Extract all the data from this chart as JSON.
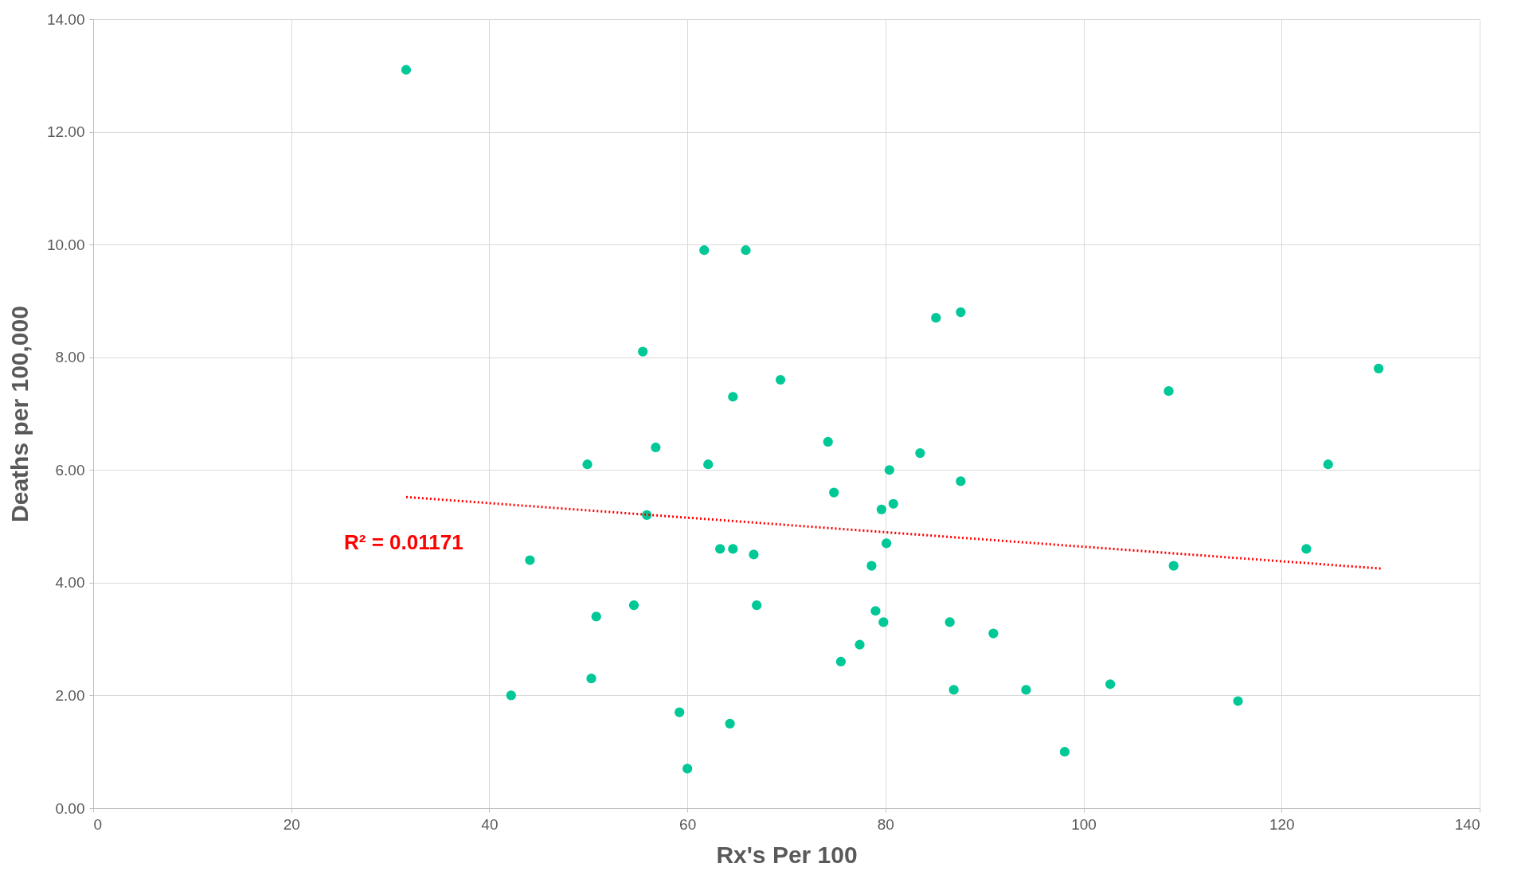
{
  "chart_data": {
    "type": "scatter",
    "xlabel": "Rx's Per 100",
    "ylabel": "Deaths per 100,000",
    "xlim": [
      0,
      140
    ],
    "xticks": [
      0,
      20,
      40,
      60,
      80,
      100,
      120,
      140
    ],
    "ylim": [
      0,
      14
    ],
    "yticks": [
      {
        "value": 0,
        "label": "0.00"
      },
      {
        "value": 2,
        "label": "2.00"
      },
      {
        "value": 4,
        "label": "4.00"
      },
      {
        "value": 6,
        "label": "6.00"
      },
      {
        "value": 8,
        "label": "8.00"
      },
      {
        "value": 10,
        "label": "10.00"
      },
      {
        "value": 12,
        "label": "12.00"
      },
      {
        "value": 14,
        "label": "14.00"
      }
    ],
    "grid": true,
    "marker": "circle",
    "annotations": [
      "R² = 0.01171"
    ],
    "series": [
      {
        "type": "scatter",
        "color": "#00c896",
        "x": [
          31.6,
          61.7,
          65.9,
          85.1,
          87.6,
          55.5,
          69.4,
          64.6,
          108.6,
          129.8,
          74.2,
          56.8,
          49.9,
          62.1,
          83.5,
          80.4,
          87.6,
          74.8,
          124.7,
          80.8,
          79.6,
          55.9,
          80.1,
          63.3,
          64.6,
          66.7,
          78.6,
          122.5,
          109.1,
          44.1,
          54.6,
          67.0,
          50.8,
          79.0,
          79.8,
          86.5,
          90.9,
          77.4,
          75.5,
          50.3,
          42.2,
          86.9,
          94.2,
          102.7,
          115.6,
          59.2,
          64.3,
          60.0,
          98.1
        ],
        "values": [
          13.1,
          9.9,
          9.9,
          8.7,
          8.8,
          8.1,
          7.6,
          7.3,
          7.4,
          7.8,
          6.5,
          6.4,
          6.1,
          6.1,
          6.3,
          6.0,
          5.8,
          5.6,
          6.1,
          5.4,
          5.3,
          5.2,
          4.7,
          4.6,
          4.6,
          4.5,
          4.3,
          4.6,
          4.3,
          4.4,
          3.6,
          3.6,
          3.4,
          3.5,
          3.3,
          3.3,
          3.1,
          2.9,
          2.6,
          2.3,
          2.0,
          2.1,
          2.1,
          2.2,
          1.9,
          1.7,
          1.5,
          0.7,
          1.0
        ]
      },
      {
        "type": "line",
        "color": "#ff0000",
        "line_style": "dotted",
        "marker": "none",
        "x": [
          31.6,
          130.1
        ],
        "values": [
          5.52,
          4.25
        ]
      }
    ]
  }
}
